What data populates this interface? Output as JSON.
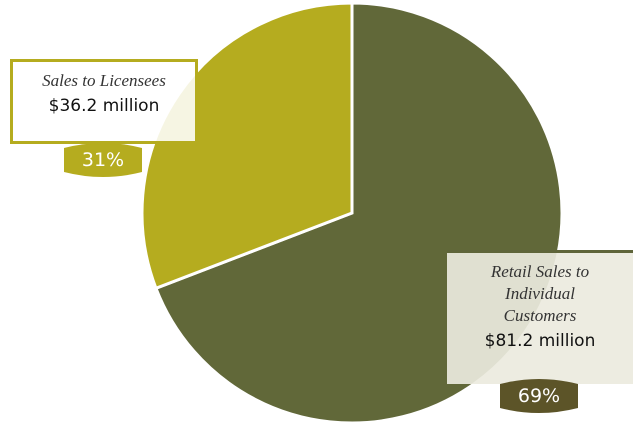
{
  "chart_data": {
    "type": "pie",
    "slices": [
      {
        "label": "Retail Sales to Individual Customers",
        "value": 81.2,
        "percent_label": "69%",
        "amount_label": "$81.2 million",
        "color": "#616839"
      },
      {
        "label": "Sales to Licensees",
        "value": 36.2,
        "percent_label": "31%",
        "amount_label": "$36.2 million",
        "color": "#b5ac1f"
      }
    ]
  },
  "labels": {
    "licensees": {
      "name": "Sales to Licensees",
      "amount": "$36.2 million",
      "percent": "31%"
    },
    "retail": {
      "name_line1": "Retail Sales to",
      "name_line2": "Individual",
      "name_line3": "Customers",
      "amount": "$81.2 million",
      "percent": "69%"
    }
  },
  "colors": {
    "retail_slice": "#616839",
    "licensees_slice": "#b5ac1f",
    "retail_tag": "#5c5428",
    "licensees_tag": "#b5ac1f"
  }
}
